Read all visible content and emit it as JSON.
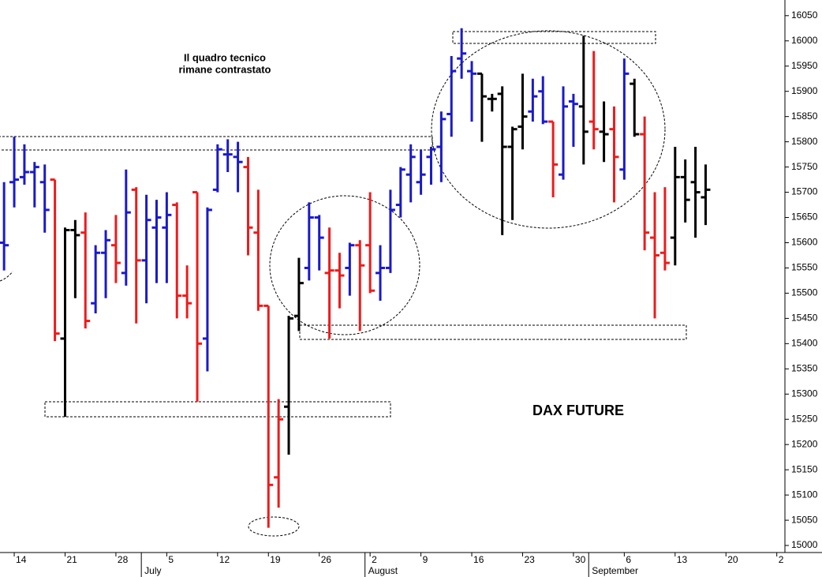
{
  "chart_data": {
    "type": "ohlc",
    "title": "DAX FUTURE",
    "notes": [
      "Il quadro tecnico",
      "rimane contrastato"
    ],
    "open": [
      15600,
      15720,
      15730,
      15740,
      15720,
      15725,
      15410,
      15625,
      15620,
      15480,
      15580,
      15595,
      15540,
      15705,
      15565,
      15630,
      15630,
      15675,
      15495,
      15700,
      15410,
      15705,
      15775,
      15770,
      15750,
      15620,
      15475,
      15135,
      15275,
      15455,
      15550,
      15650,
      15540,
      15545,
      15550,
      15595,
      15595,
      15540,
      15550,
      15675,
      15735,
      15720,
      15770,
      15790,
      15855,
      15965,
      15940,
      15935,
      15885,
      15895,
      15790,
      15830,
      15860,
      15900,
      15840,
      15735,
      15880,
      15870,
      15840,
      15820,
      15825,
      15745,
      15915,
      15815,
      15610,
      15580,
      15610,
      15730,
      15720,
      15690
    ],
    "high": [
      15720,
      15810,
      15795,
      15760,
      15755,
      15725,
      15630,
      15645,
      15660,
      15595,
      15625,
      15655,
      15745,
      15710,
      15695,
      15685,
      15700,
      15680,
      15555,
      15700,
      15670,
      15795,
      15805,
      15800,
      15770,
      15705,
      15475,
      15290,
      15455,
      15570,
      15680,
      15655,
      15630,
      15580,
      15600,
      15605,
      15700,
      15595,
      15705,
      15750,
      15795,
      15785,
      15790,
      15860,
      15970,
      16025,
      15960,
      15935,
      15895,
      15910,
      15830,
      15935,
      15925,
      15930,
      15840,
      15910,
      15895,
      16010,
      15980,
      15880,
      15870,
      15965,
      15925,
      15850,
      15700,
      15710,
      15790,
      15765,
      15790,
      15755
    ],
    "low": [
      15545,
      15670,
      15715,
      15670,
      15620,
      15405,
      15255,
      15490,
      15430,
      15460,
      15490,
      15520,
      15515,
      15440,
      15480,
      15520,
      15520,
      15450,
      15450,
      15285,
      15345,
      15700,
      15740,
      15700,
      15575,
      15465,
      15035,
      15075,
      15180,
      15425,
      15525,
      15545,
      15410,
      15470,
      15495,
      15425,
      15500,
      15485,
      15540,
      15650,
      15680,
      15695,
      15715,
      15720,
      15810,
      15925,
      15840,
      15800,
      15860,
      15615,
      15645,
      15785,
      15840,
      15835,
      15690,
      15725,
      15790,
      15755,
      15785,
      15760,
      15680,
      15725,
      15810,
      15585,
      15450,
      15545,
      15555,
      15640,
      15610,
      15635
    ],
    "close": [
      15595,
      15725,
      15740,
      15750,
      15665,
      15420,
      15625,
      15615,
      15445,
      15580,
      15605,
      15560,
      15660,
      15565,
      15645,
      15650,
      15655,
      15495,
      15480,
      15400,
      15665,
      15785,
      15775,
      15760,
      15630,
      15475,
      15120,
      15250,
      15450,
      15520,
      15650,
      15610,
      15545,
      15535,
      15595,
      15555,
      15505,
      15550,
      15665,
      15745,
      15770,
      15735,
      15785,
      15845,
      15940,
      15975,
      15935,
      15890,
      15885,
      15790,
      15825,
      15850,
      15890,
      15840,
      15755,
      15870,
      15875,
      15820,
      15825,
      15815,
      15770,
      15935,
      15815,
      15620,
      15575,
      15560,
      15730,
      15685,
      15700,
      15705
    ],
    "colors": [
      "#1a1acc",
      "#1a1acc",
      "#1a1acc",
      "#1a1acc",
      "#1a1acc",
      "#ee1b1b",
      "#000000",
      "#000000",
      "#ee1b1b",
      "#1a1acc",
      "#1a1acc",
      "#ee1b1b",
      "#1a1acc",
      "#ee1b1b",
      "#1a1acc",
      "#1a1acc",
      "#1a1acc",
      "#ee1b1b",
      "#ee1b1b",
      "#ee1b1b",
      "#1a1acc",
      "#1a1acc",
      "#1a1acc",
      "#1a1acc",
      "#ee1b1b",
      "#ee1b1b",
      "#ee1b1b",
      "#ee1b1b",
      "#000000",
      "#000000",
      "#1a1acc",
      "#1a1acc",
      "#ee1b1b",
      "#ee1b1b",
      "#1a1acc",
      "#ee1b1b",
      "#ee1b1b",
      "#1a1acc",
      "#1a1acc",
      "#1a1acc",
      "#1a1acc",
      "#1a1acc",
      "#1a1acc",
      "#1a1acc",
      "#1a1acc",
      "#1a1acc",
      "#1a1acc",
      "#000000",
      "#000000",
      "#000000",
      "#000000",
      "#000000",
      "#1a1acc",
      "#1a1acc",
      "#ee1b1b",
      "#1a1acc",
      "#1a1acc",
      "#000000",
      "#ee1b1b",
      "#000000",
      "#ee1b1b",
      "#1a1acc",
      "#000000",
      "#ee1b1b",
      "#ee1b1b",
      "#ee1b1b",
      "#000000",
      "#000000",
      "#000000",
      "#000000"
    ],
    "xlim": [
      -0.4,
      76.8
    ],
    "xticks": [
      {
        "value": 1,
        "label": "14"
      },
      {
        "value": 6,
        "label": "21"
      },
      {
        "value": 11,
        "label": "28"
      },
      {
        "value": 16,
        "label": "5"
      },
      {
        "value": 21,
        "label": "12"
      },
      {
        "value": 26,
        "label": "19"
      },
      {
        "value": 31,
        "label": "26"
      },
      {
        "value": 36,
        "label": "2"
      },
      {
        "value": 41,
        "label": "9"
      },
      {
        "value": 46,
        "label": "16"
      },
      {
        "value": 51,
        "label": "23"
      },
      {
        "value": 56,
        "label": "30"
      },
      {
        "value": 61,
        "label": "6"
      },
      {
        "value": 66,
        "label": "13"
      },
      {
        "value": 71,
        "label": "20"
      },
      {
        "value": 76,
        "label": "2"
      }
    ],
    "months": [
      {
        "value": 13.5,
        "label": "July"
      },
      {
        "value": 35.5,
        "label": "August"
      },
      {
        "value": 57.5,
        "label": "September"
      }
    ],
    "ylim": [
      14986,
      16081
    ],
    "yticks": [
      15000,
      15050,
      15100,
      15150,
      15200,
      15250,
      15300,
      15350,
      15400,
      15450,
      15500,
      15550,
      15600,
      15650,
      15700,
      15750,
      15800,
      15850,
      15900,
      15950,
      16000,
      16050
    ]
  }
}
